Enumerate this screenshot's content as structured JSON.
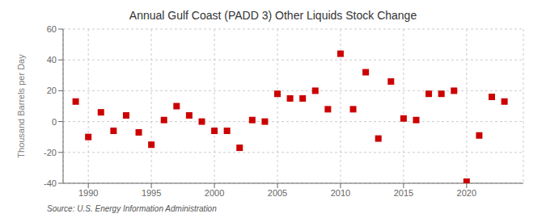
{
  "chart_data": {
    "type": "scatter",
    "title": "Annual Gulf Coast (PADD 3) Other Liquids Stock Change",
    "ylabel": "Thousand Barrels per Day",
    "source": "Source: U.S. Energy Information Administration",
    "x": [
      1989,
      1990,
      1991,
      1992,
      1993,
      1994,
      1995,
      1996,
      1997,
      1998,
      1999,
      2000,
      2001,
      2002,
      2003,
      2004,
      2005,
      2006,
      2007,
      2008,
      2009,
      2010,
      2011,
      2012,
      2013,
      2014,
      2015,
      2016,
      2017,
      2018,
      2019,
      2020,
      2021,
      2022,
      2023
    ],
    "values": [
      13,
      -10,
      6,
      -6,
      4,
      -7,
      -15,
      1,
      10,
      4,
      0,
      -6,
      -6,
      -17,
      1,
      0,
      18,
      15,
      15,
      20,
      8,
      44,
      8,
      32,
      -11,
      26,
      2,
      1,
      18,
      18,
      20,
      -39,
      -9,
      16,
      13
    ],
    "color": "#cc0000",
    "marker": "square",
    "xlim": [
      1988.0,
      2024.5
    ],
    "xticks": [
      1990,
      1995,
      2000,
      2005,
      2010,
      2015,
      2020
    ],
    "ylim": [
      -40,
      60
    ],
    "yticks": [
      -40,
      -20,
      0,
      20,
      40,
      60
    ],
    "grid": true
  }
}
